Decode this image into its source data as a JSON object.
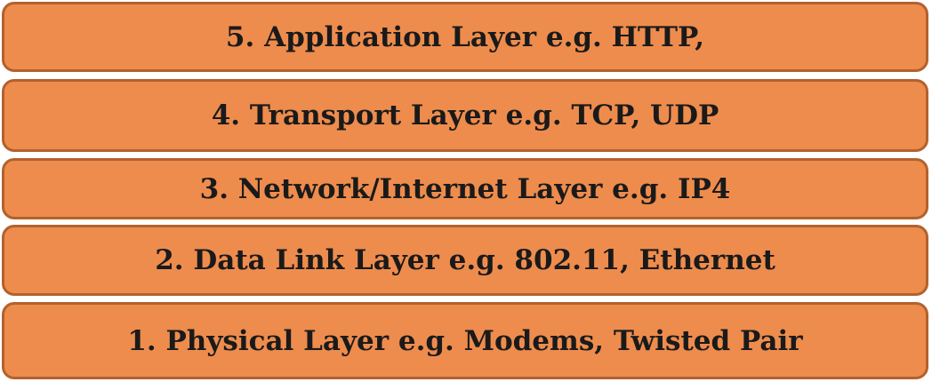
{
  "layers": [
    {
      "label": "5. Application Layer e.g. HTTP,"
    },
    {
      "label": "4. Transport Layer e.g. TCP, UDP"
    },
    {
      "label": "3. Network/Internet Layer e.g. IP4"
    },
    {
      "label": "2. Data Link Layer e.g. 802.11, Ethernet"
    },
    {
      "label": "1. Physical Layer e.g. Modems, Twisted Pair"
    }
  ],
  "colors": {
    "fill": "#ee8c4d",
    "border": "#b3612d",
    "text": "#1a1a1a"
  }
}
